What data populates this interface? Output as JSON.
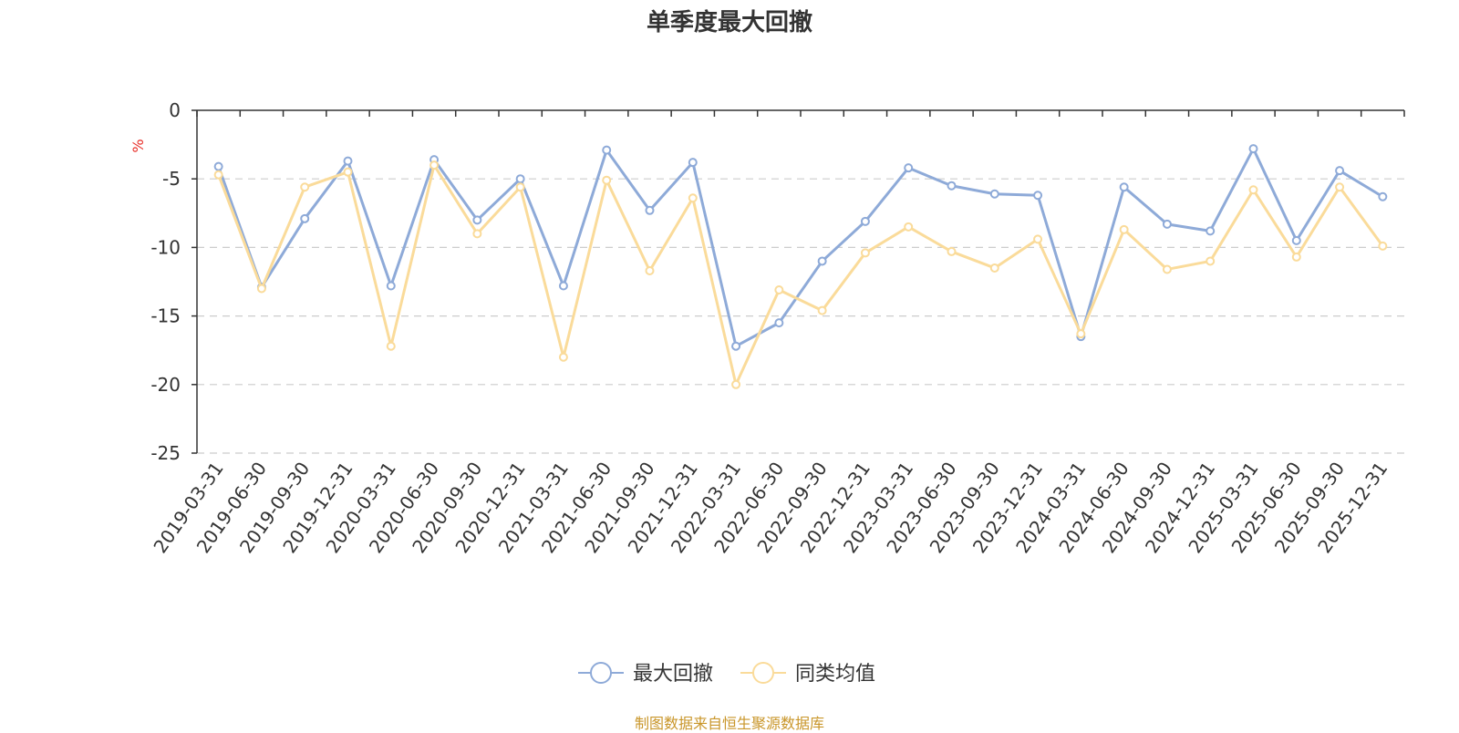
{
  "chart_data": {
    "type": "line",
    "title": "单季度最大回撤",
    "ylabel": "%",
    "ylim": [
      -25,
      0
    ],
    "yticks": [
      0,
      -5,
      -10,
      -15,
      -20,
      -25
    ],
    "grid": true,
    "legend_position": "bottom-center",
    "categories": [
      "2019-03-31",
      "2019-06-30",
      "2019-09-30",
      "2019-12-31",
      "2020-03-31",
      "2020-06-30",
      "2020-09-30",
      "2020-12-31",
      "2021-03-31",
      "2021-06-30",
      "2021-09-30",
      "2021-12-31",
      "2022-03-31",
      "2022-06-30",
      "2022-09-30",
      "2022-12-31",
      "2023-03-31",
      "2023-06-30",
      "2023-09-30",
      "2023-12-31",
      "2024-03-31",
      "2024-06-30",
      "2024-09-30",
      "2024-12-31",
      "2025-03-31",
      "2025-06-30",
      "2025-09-30",
      "2025-12-31"
    ],
    "series": [
      {
        "name": "最大回撤",
        "color": "#8eaad8",
        "values": [
          -4.1,
          -12.9,
          -7.9,
          -3.7,
          -12.8,
          -3.6,
          -8.0,
          -5.0,
          -12.8,
          -2.9,
          -7.3,
          -3.8,
          -17.2,
          -15.5,
          -11.0,
          -8.1,
          -4.2,
          -5.5,
          -6.1,
          -6.2,
          -16.5,
          -5.6,
          -8.3,
          -8.8,
          -2.8,
          -9.5,
          -4.4,
          -6.3
        ]
      },
      {
        "name": "同类均值",
        "color": "#fadb9a",
        "values": [
          -4.7,
          -13.0,
          -5.6,
          -4.5,
          -17.2,
          -4.0,
          -9.0,
          -5.6,
          -18.0,
          -5.1,
          -11.7,
          -6.4,
          -20.0,
          -13.1,
          -14.6,
          -10.4,
          -8.5,
          -10.3,
          -11.5,
          -9.4,
          -16.3,
          -8.7,
          -11.6,
          -11.0,
          -5.8,
          -10.7,
          -5.6,
          -9.9
        ]
      }
    ]
  },
  "footer": "制图数据来自恒生聚源数据库"
}
